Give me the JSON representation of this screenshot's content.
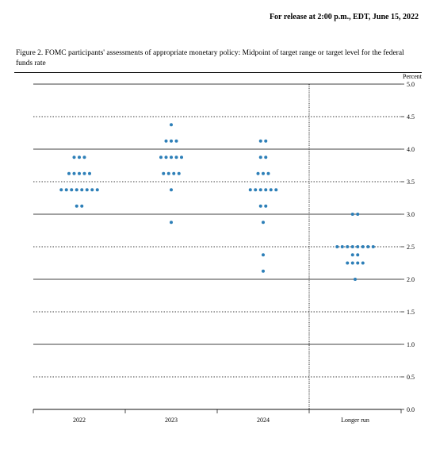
{
  "release_line": "For release at 2:00 p.m., EDT, June 15, 2022",
  "caption": "Figure 2.  FOMC participants' assessments of appropriate monetary policy:  Midpoint of target range or target level for the federal funds rate",
  "y_axis_title": "Percent",
  "chart": {
    "type": "dotplot",
    "background_color": "#ffffff",
    "dot_color": "#2d7fb8",
    "dot_radius": 2.0,
    "axis_fontsize": 8,
    "label_fontsize": 8,
    "y": {
      "min": 0.0,
      "max": 5.0,
      "major_step": 1.0,
      "minor_step": 0.5,
      "ticks": [
        0.0,
        0.5,
        1.0,
        1.5,
        2.0,
        2.5,
        3.0,
        3.5,
        4.0,
        4.5,
        5.0
      ]
    },
    "categories": [
      {
        "key": "2022",
        "label": "2022"
      },
      {
        "key": "2023",
        "label": "2023"
      },
      {
        "key": "2024",
        "label": "2024"
      },
      {
        "key": "longer_run",
        "label": "Longer run"
      }
    ],
    "divider_after_index": 2,
    "data": {
      "2022": {
        "3.125": 2,
        "3.375": 8,
        "3.625": 5,
        "3.875": 3
      },
      "2023": {
        "2.875": 1,
        "3.375": 1,
        "3.625": 4,
        "3.875": 5,
        "4.125": 3,
        "4.375": 1
      },
      "2024": {
        "2.125": 1,
        "2.375": 1,
        "2.875": 1,
        "3.125": 2,
        "3.375": 6,
        "3.625": 3,
        "3.875": 2,
        "4.125": 2
      },
      "longer_run": {
        "2.0": 1,
        "2.25": 4,
        "2.375": 2,
        "2.5": 8,
        "3.0": 2
      }
    }
  }
}
